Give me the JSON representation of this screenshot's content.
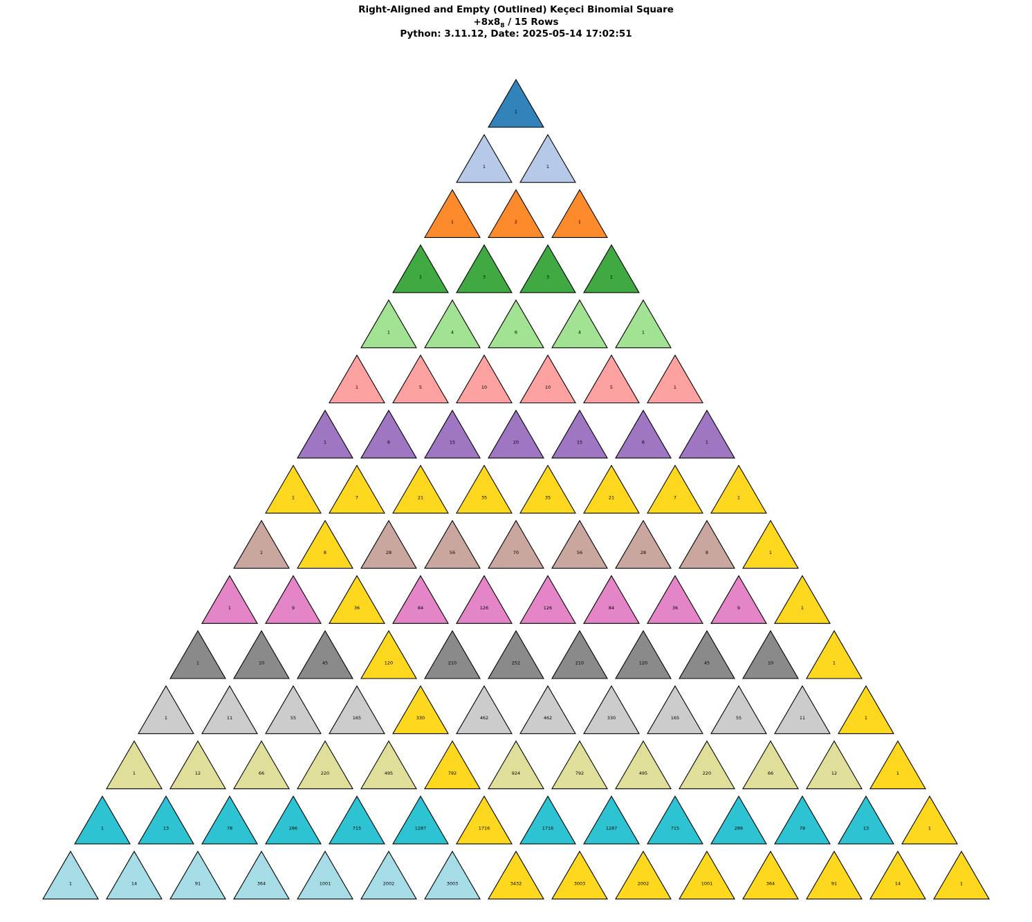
{
  "title": {
    "line1": "Right-Aligned and Empty (Outlined) Keçeci Binomial Square",
    "line2_main": "+8x8",
    "line2_sub": "8",
    "line2_rest": " / 15 Rows",
    "line3": "Python: 3.11.12, Date: 2025-05-14 17:02:51"
  },
  "chart_data": {
    "type": "triangle-grid",
    "rows": 15,
    "values": [
      [
        1
      ],
      [
        1,
        1
      ],
      [
        1,
        2,
        1
      ],
      [
        1,
        3,
        3,
        1
      ],
      [
        1,
        4,
        6,
        4,
        1
      ],
      [
        1,
        5,
        10,
        10,
        5,
        1
      ],
      [
        1,
        6,
        15,
        20,
        15,
        6,
        1
      ],
      [
        1,
        7,
        21,
        35,
        35,
        21,
        7,
        1
      ],
      [
        1,
        8,
        28,
        56,
        70,
        56,
        28,
        8,
        1
      ],
      [
        1,
        9,
        36,
        84,
        126,
        126,
        84,
        36,
        9,
        1
      ],
      [
        1,
        10,
        45,
        120,
        210,
        252,
        210,
        120,
        45,
        10,
        1
      ],
      [
        1,
        11,
        55,
        165,
        330,
        462,
        462,
        330,
        165,
        55,
        11,
        1
      ],
      [
        1,
        12,
        66,
        220,
        495,
        792,
        924,
        792,
        495,
        220,
        66,
        12,
        1
      ],
      [
        1,
        13,
        78,
        286,
        715,
        1287,
        1716,
        1716,
        1287,
        715,
        286,
        78,
        13,
        1
      ],
      [
        1,
        14,
        91,
        364,
        1001,
        2002,
        3003,
        3432,
        3003,
        2002,
        1001,
        364,
        91,
        14,
        1
      ]
    ],
    "row_colors": [
      "#3383bb",
      "#b6c9e8",
      "#fd8b2b",
      "#40a942",
      "#a2e293",
      "#fda2a0",
      "#9e76c1",
      "#fed81f",
      "#c9a79f",
      "#e485c7",
      "#8a8a8a",
      "#cccccc",
      "#dfdf9a",
      "#2dc3d2",
      "#a6dce5"
    ],
    "highlight_color": "#fed81f",
    "highlighted_cells": [
      [
        8,
        1
      ],
      [
        9,
        2
      ],
      [
        10,
        3
      ],
      [
        11,
        4
      ],
      [
        12,
        5
      ],
      [
        13,
        6
      ],
      [
        14,
        7
      ],
      [
        14,
        8
      ],
      [
        14,
        9
      ],
      [
        14,
        10
      ],
      [
        14,
        11
      ],
      [
        14,
        12
      ],
      [
        14,
        13
      ],
      [
        14,
        14
      ]
    ],
    "highlight_right_edge_from_row": 7,
    "outline_color": "#000000"
  }
}
